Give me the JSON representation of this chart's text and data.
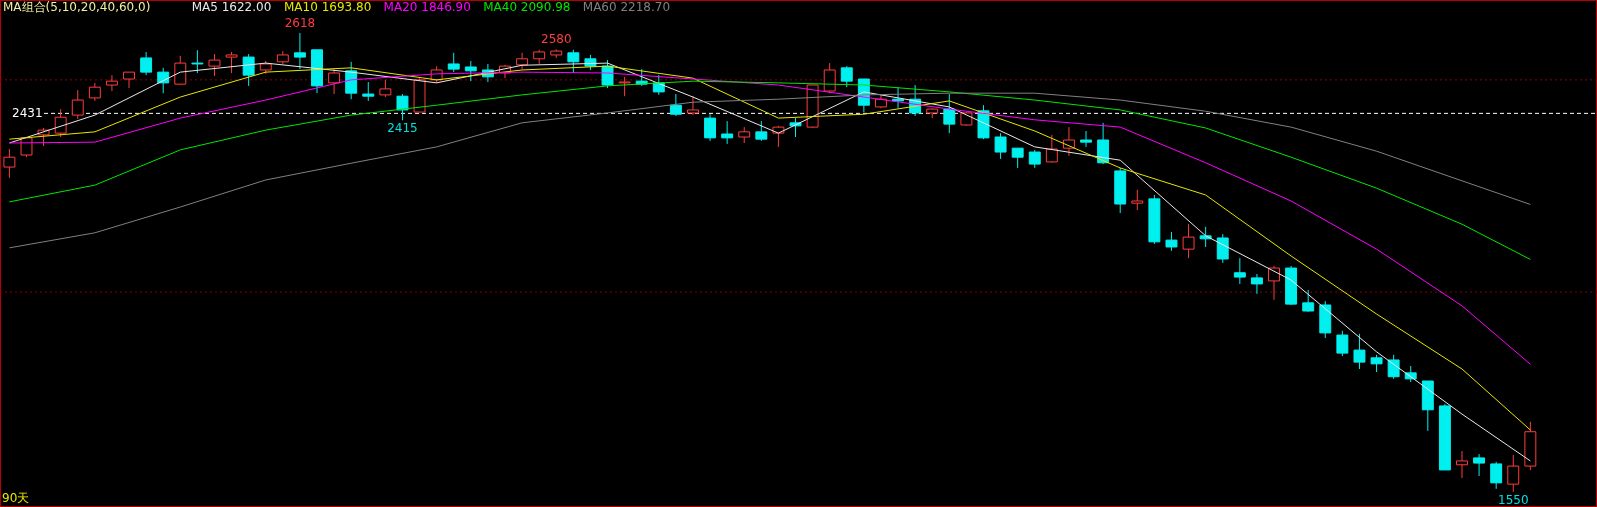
{
  "chart_data": {
    "type": "candlestick",
    "title": "MA组合(5,10,20,40,60,0)",
    "categories": [
      null,
      null,
      null,
      null,
      null,
      null,
      null,
      null,
      null,
      null,
      null,
      null,
      null,
      null,
      null,
      null,
      null,
      null,
      null,
      null,
      null,
      null,
      null,
      null,
      null,
      null,
      null,
      null,
      null,
      null,
      null,
      null,
      null,
      null,
      null,
      null,
      null,
      null,
      null,
      null,
      null,
      null,
      null,
      null,
      null,
      null,
      null,
      null,
      null,
      null,
      null,
      null,
      null,
      null,
      null,
      null,
      null,
      null,
      null,
      null,
      null,
      null,
      null,
      null,
      null,
      null,
      null,
      null,
      null,
      null,
      null,
      null,
      null,
      null,
      null,
      null,
      null,
      null,
      null,
      null,
      null,
      null,
      null,
      null,
      null,
      null,
      null,
      null,
      null,
      null
    ],
    "ohlc": [
      [
        2306,
        2348,
        2281,
        2329
      ],
      [
        2334,
        2376,
        2329,
        2374
      ],
      [
        2381,
        2397,
        2355,
        2392
      ],
      [
        2385,
        2441,
        2376,
        2422
      ],
      [
        2427,
        2485,
        2418,
        2462
      ],
      [
        2467,
        2502,
        2460,
        2492
      ],
      [
        2497,
        2520,
        2483,
        2506
      ],
      [
        2511,
        2527,
        2490,
        2527
      ],
      [
        2560,
        2574,
        2520,
        2527
      ],
      [
        2527,
        2537,
        2478,
        2502
      ],
      [
        2499,
        2565,
        2497,
        2548
      ],
      [
        2548,
        2578,
        2525,
        2546
      ],
      [
        2541,
        2569,
        2518,
        2555
      ],
      [
        2562,
        2574,
        2525,
        2567
      ],
      [
        2562,
        2569,
        2495,
        2520
      ],
      [
        2532,
        2553,
        2523,
        2546
      ],
      [
        2551,
        2576,
        2546,
        2567
      ],
      [
        2572,
        2618,
        2534,
        2562
      ],
      [
        2579,
        2579,
        2478,
        2495
      ],
      [
        2502,
        2534,
        2476,
        2525
      ],
      [
        2530,
        2551,
        2464,
        2478
      ],
      [
        2476,
        2504,
        2460,
        2471
      ],
      [
        2474,
        2509,
        2469,
        2488
      ],
      [
        2471,
        2476,
        2415,
        2439
      ],
      [
        2434,
        2513,
        2434,
        2509
      ],
      [
        2509,
        2541,
        2502,
        2532
      ],
      [
        2546,
        2572,
        2527,
        2534
      ],
      [
        2539,
        2553,
        2506,
        2530
      ],
      [
        2532,
        2546,
        2504,
        2516
      ],
      [
        2525,
        2544,
        2513,
        2541
      ],
      [
        2544,
        2572,
        2534,
        2558
      ],
      [
        2558,
        2579,
        2546,
        2574
      ],
      [
        2567,
        2580,
        2560,
        2576
      ],
      [
        2572,
        2579,
        2525,
        2551
      ],
      [
        2558,
        2567,
        2532,
        2541
      ],
      [
        2541,
        2555,
        2490,
        2497
      ],
      [
        2502,
        2516,
        2471,
        2504
      ],
      [
        2506,
        2534,
        2495,
        2499
      ],
      [
        2502,
        2520,
        2474,
        2481
      ],
      [
        2450,
        2476,
        2425,
        2429
      ],
      [
        2432,
        2471,
        2427,
        2439
      ],
      [
        2420,
        2429,
        2367,
        2374
      ],
      [
        2383,
        2413,
        2360,
        2374
      ],
      [
        2376,
        2399,
        2362,
        2388
      ],
      [
        2388,
        2413,
        2367,
        2371
      ],
      [
        2385,
        2402,
        2353,
        2399
      ],
      [
        2409,
        2420,
        2376,
        2402
      ],
      [
        2399,
        2497,
        2397,
        2497
      ],
      [
        2483,
        2548,
        2478,
        2532
      ],
      [
        2537,
        2541,
        2492,
        2506
      ],
      [
        2511,
        2511,
        2434,
        2450
      ],
      [
        2446,
        2476,
        2443,
        2464
      ],
      [
        2464,
        2492,
        2443,
        2460
      ],
      [
        2464,
        2497,
        2425,
        2432
      ],
      [
        2432,
        2443,
        2420,
        2441
      ],
      [
        2441,
        2476,
        2385,
        2406
      ],
      [
        2404,
        2434,
        2402,
        2432
      ],
      [
        2437,
        2450,
        2371,
        2374
      ],
      [
        2376,
        2385,
        2325,
        2341
      ],
      [
        2350,
        2350,
        2304,
        2329
      ],
      [
        2341,
        2346,
        2304,
        2313
      ],
      [
        2318,
        2381,
        2316,
        2348
      ],
      [
        2350,
        2399,
        2332,
        2369
      ],
      [
        2369,
        2390,
        2353,
        2364
      ],
      [
        2369,
        2409,
        2313,
        2316
      ],
      [
        2297,
        2304,
        2199,
        2220
      ],
      [
        2222,
        2253,
        2206,
        2227
      ],
      [
        2232,
        2241,
        2127,
        2132
      ],
      [
        2136,
        2155,
        2111,
        2120
      ],
      [
        2115,
        2174,
        2094,
        2143
      ],
      [
        2146,
        2167,
        2120,
        2139
      ],
      [
        2141,
        2150,
        2083,
        2092
      ],
      [
        2060,
        2094,
        2034,
        2050
      ],
      [
        2048,
        2057,
        2011,
        2034
      ],
      [
        2041,
        2076,
        1997,
        2071
      ],
      [
        2071,
        2076,
        1985,
        1987
      ],
      [
        1990,
        2020,
        1969,
        1971
      ],
      [
        1985,
        1994,
        1908,
        1920
      ],
      [
        1915,
        1925,
        1866,
        1873
      ],
      [
        1880,
        1918,
        1836,
        1852
      ],
      [
        1862,
        1869,
        1829,
        1848
      ],
      [
        1857,
        1869,
        1813,
        1818
      ],
      [
        1827,
        1843,
        1806,
        1813
      ],
      [
        1808,
        1808,
        1692,
        1741
      ],
      [
        1750,
        1755,
        1601,
        1601
      ],
      [
        1613,
        1645,
        1582,
        1622
      ],
      [
        1629,
        1638,
        1587,
        1617
      ],
      [
        1615,
        1620,
        1557,
        1571
      ],
      [
        1568,
        1636,
        1550,
        1610
      ],
      [
        1610,
        1713,
        1601,
        1690
      ]
    ],
    "colors": [
      "#ff3c3c",
      "#ff3c3c",
      "#ff3c3c",
      "#ff3c3c",
      "#ff3c3c",
      "#ff3c3c",
      "#ff3c3c",
      "#ff3c3c",
      "#00f0f0",
      "#00f0f0",
      "#ff3c3c",
      "#00f0f0",
      "#ff3c3c",
      "#ff3c3c",
      "#00f0f0",
      "#ff3c3c",
      "#ff3c3c",
      "#00f0f0",
      "#00f0f0",
      "#ff3c3c",
      "#00f0f0",
      "#00f0f0",
      "#ff3c3c",
      "#00f0f0",
      "#ff3c3c",
      "#ff3c3c",
      "#00f0f0",
      "#00f0f0",
      "#00f0f0",
      "#ff3c3c",
      "#ff3c3c",
      "#ff3c3c",
      "#ff3c3c",
      "#00f0f0",
      "#00f0f0",
      "#00f0f0",
      "#ff3c3c",
      "#00f0f0",
      "#00f0f0",
      "#00f0f0",
      "#ff3c3c",
      "#00f0f0",
      "#00f0f0",
      "#ff3c3c",
      "#00f0f0",
      "#ff3c3c",
      "#00f0f0",
      "#ff3c3c",
      "#ff3c3c",
      "#00f0f0",
      "#00f0f0",
      "#ff3c3c",
      "#00f0f0",
      "#00f0f0",
      "#ff3c3c",
      "#00f0f0",
      "#ff3c3c",
      "#00f0f0",
      "#00f0f0",
      "#00f0f0",
      "#00f0f0",
      "#ff3c3c",
      "#ff3c3c",
      "#00f0f0",
      "#00f0f0",
      "#00f0f0",
      "#ff3c3c",
      "#00f0f0",
      "#00f0f0",
      "#ff3c3c",
      "#00f0f0",
      "#00f0f0",
      "#00f0f0",
      "#00f0f0",
      "#ff3c3c",
      "#00f0f0",
      "#00f0f0",
      "#00f0f0",
      "#00f0f0",
      "#00f0f0",
      "#00f0f0",
      "#00f0f0",
      "#00f0f0",
      "#00f0f0",
      "#00f0f0",
      "#ff3c3c",
      "#00f0f0",
      "#00f0f0",
      "#ff3c3c",
      "#ff3c3c"
    ],
    "series": [
      {
        "name": "MA5 1622.00",
        "type": "line",
        "color": "#e8e8e8",
        "values": [
          2362,
          null,
          null,
          null,
          null,
          2427,
          null,
          null,
          null,
          null,
          2527,
          null,
          null,
          null,
          null,
          2548,
          null,
          null,
          null,
          null,
          2527,
          null,
          null,
          null,
          null,
          2502,
          null,
          null,
          null,
          null,
          2543,
          null,
          null,
          null,
          null,
          2548,
          null,
          null,
          null,
          null,
          2469,
          null,
          null,
          null,
          null,
          2385,
          null,
          null,
          null,
          null,
          2481,
          null,
          null,
          null,
          null,
          2446,
          null,
          null,
          null,
          null,
          2353,
          null,
          null,
          null,
          null,
          2322,
          null,
          null,
          null,
          null,
          2146,
          null,
          null,
          null,
          null,
          2043,
          null,
          null,
          null,
          null,
          1876,
          null,
          null,
          null,
          null,
          1731,
          null,
          null,
          null,
          1622
        ]
      },
      {
        "name": "MA10 1693.80",
        "type": "line",
        "color": "#e6e600",
        "values": [
          2371,
          null,
          null,
          null,
          null,
          2388,
          null,
          null,
          null,
          null,
          2469,
          null,
          null,
          null,
          null,
          2527,
          null,
          null,
          null,
          null,
          2537,
          null,
          null,
          null,
          null,
          2509,
          null,
          null,
          null,
          null,
          2532,
          null,
          null,
          null,
          null,
          2541,
          null,
          null,
          null,
          null,
          2513,
          null,
          null,
          null,
          null,
          2420,
          null,
          null,
          null,
          null,
          2429,
          null,
          null,
          null,
          null,
          2460,
          null,
          null,
          null,
          null,
          2390,
          null,
          null,
          null,
          null,
          2304,
          null,
          null,
          null,
          null,
          2241,
          null,
          null,
          null,
          null,
          2099,
          null,
          null,
          null,
          null,
          1964,
          null,
          null,
          null,
          null,
          1836,
          null,
          null,
          null,
          1694
        ]
      },
      {
        "name": "MA20 1846.90",
        "type": "line",
        "color": "#ff00ff",
        "values": [
          2362,
          null,
          null,
          null,
          null,
          2364,
          null,
          null,
          null,
          null,
          2420,
          null,
          null,
          null,
          null,
          2462,
          null,
          null,
          null,
          null,
          2509,
          null,
          null,
          null,
          null,
          2523,
          null,
          null,
          null,
          null,
          2527,
          null,
          null,
          null,
          null,
          2525,
          null,
          null,
          null,
          null,
          2511,
          null,
          null,
          null,
          null,
          2497,
          null,
          null,
          null,
          null,
          2469,
          null,
          null,
          null,
          null,
          2441,
          null,
          null,
          null,
          null,
          2416,
          null,
          null,
          null,
          null,
          2399,
          null,
          null,
          null,
          null,
          2316,
          null,
          null,
          null,
          null,
          2227,
          null,
          null,
          null,
          null,
          2115,
          null,
          null,
          null,
          null,
          1983,
          null,
          null,
          null,
          1847
        ]
      },
      {
        "name": "MA40 2090.98",
        "type": "line",
        "color": "#00e600",
        "values": [
          2225,
          null,
          null,
          null,
          null,
          2264,
          null,
          null,
          null,
          null,
          2346,
          null,
          null,
          null,
          null,
          2392,
          null,
          null,
          null,
          null,
          2427,
          null,
          null,
          null,
          null,
          2450,
          null,
          null,
          null,
          null,
          2474,
          null,
          null,
          null,
          null,
          2495,
          null,
          null,
          null,
          null,
          2506,
          null,
          null,
          null,
          null,
          2502,
          null,
          null,
          null,
          null,
          2497,
          null,
          null,
          null,
          null,
          2481,
          null,
          null,
          null,
          null,
          2462,
          null,
          null,
          null,
          null,
          2439,
          null,
          null,
          null,
          null,
          2397,
          null,
          null,
          null,
          null,
          2329,
          null,
          null,
          null,
          null,
          2257,
          null,
          null,
          null,
          null,
          2173,
          null,
          null,
          null,
          2091
        ]
      },
      {
        "name": "MA60 2218.70",
        "type": "line",
        "color": "#808080",
        "values": [
          2118,
          null,
          null,
          null,
          null,
          2153,
          null,
          null,
          null,
          null,
          2213,
          null,
          null,
          null,
          null,
          2276,
          null,
          null,
          null,
          null,
          2315,
          null,
          null,
          null,
          null,
          2353,
          null,
          null,
          null,
          null,
          2409,
          null,
          null,
          null,
          null,
          2432,
          null,
          null,
          null,
          null,
          2457,
          null,
          null,
          null,
          null,
          2464,
          null,
          null,
          null,
          null,
          2474,
          null,
          null,
          null,
          null,
          2478,
          null,
          null,
          null,
          null,
          2478,
          null,
          null,
          null,
          null,
          2462,
          null,
          null,
          null,
          null,
          2436,
          null,
          null,
          null,
          null,
          2399,
          null,
          null,
          null,
          null,
          2343,
          null,
          null,
          null,
          null,
          2274,
          null,
          null,
          null,
          2219
        ]
      }
    ],
    "ref_lines": [
      {
        "axis": "y",
        "value": 2431,
        "label": "2431",
        "color": "#ffffff",
        "line_style": "dashed"
      },
      {
        "axis": "y",
        "value": 2509,
        "label": null,
        "color": "#8b0000",
        "line_style": "dotted"
      },
      {
        "axis": "y",
        "value": 2015,
        "label": null,
        "color": "#8b0000",
        "line_style": "dotted"
      }
    ],
    "annotations": [
      "90天",
      {
        "text": "2618",
        "y": 2618
      },
      {
        "text": "2415",
        "y": 2415
      },
      {
        "text": "2580",
        "y": 2580
      },
      {
        "text": "1550",
        "y": 1550
      }
    ],
    "legend": "top left"
  }
}
